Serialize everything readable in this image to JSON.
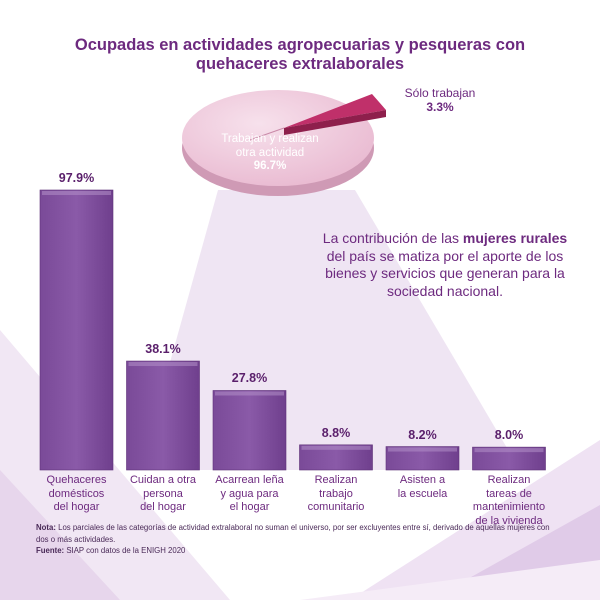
{
  "title_line1": "Ocupadas en actividades agropecuarias y pesqueras con",
  "title_line2": "quehaceres extralaborales",
  "pie": {
    "slices": [
      {
        "label_line1": "Trabajan y realizan",
        "label_line2": "otra actividad",
        "value_label": "96.7%",
        "value": 96.7,
        "color": "#f0c8dc"
      },
      {
        "label_line1": "Sólo trabajan",
        "value_label": "3.3%",
        "value": 3.3,
        "color": "#c0306a"
      }
    ]
  },
  "body_text": {
    "pre": "La contribución de las ",
    "bold": "mujeres rurales",
    "post": " del país se matiza por el aporte de los bienes y servicios que generan para la sociedad nacional."
  },
  "chart_data": {
    "type": "bar",
    "categories": [
      "Quehaceres domésticos del hogar",
      "Cuidan a otra persona del hogar",
      "Acarrean leña y agua para el hogar",
      "Realizan trabajo comunitario",
      "Asisten a la escuela",
      "Realizan tareas de mantenimiento de la vivienda"
    ],
    "category_lines": [
      [
        "Quehaceres",
        "domésticos",
        "del hogar"
      ],
      [
        "Cuidan a otra",
        "persona",
        "del hogar"
      ],
      [
        "Acarrean leña",
        "y agua para",
        "el hogar"
      ],
      [
        "Realizan",
        "trabajo",
        "comunitario"
      ],
      [
        "Asisten a",
        "la escuela"
      ],
      [
        "Realizan",
        "tareas de",
        "mantenimiento de la vivienda"
      ]
    ],
    "values": [
      97.9,
      38.1,
      27.8,
      8.8,
      8.2,
      8.0
    ],
    "value_labels": [
      "97.9%",
      "38.1%",
      "27.8%",
      "8.8%",
      "8.2%",
      "8.0%"
    ],
    "ylim": [
      0,
      100
    ],
    "bar_color": "#8a5aa8"
  },
  "note": {
    "label": "Nota:",
    "text": " Los parciales de las categorías de actividad extralaboral no suman el universo, por ser excluyentes entre sí, derivado de aquellas mujeres con dos o más actividades.",
    "source_label": "Fuente:",
    "source_text": " SIAP con datos de la ENIGH 2020"
  }
}
